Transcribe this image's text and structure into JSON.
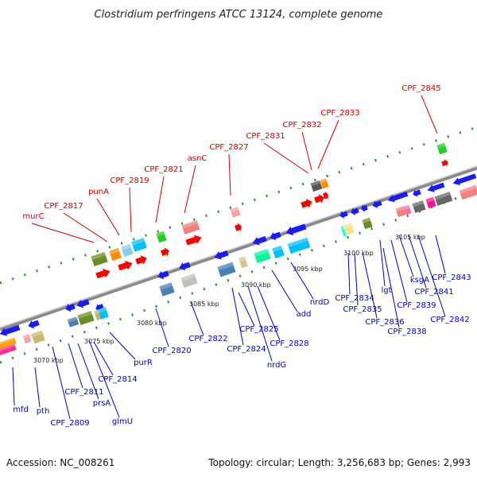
{
  "title": "Clostridium perfringens ATCC 13124, complete genome",
  "footer": {
    "accession": "Accession: NC_008261",
    "topology": "Topology: circular; Length: 3,256,683 bp; Genes: 2,993"
  },
  "scale_labels": [
    "3070 kbp",
    "3075 kbp",
    "3080 kbp",
    "3085 kbp",
    "3090 kbp",
    "3095 kbp",
    "3100 kbp",
    "3105 kbp"
  ],
  "upper_labels": [
    "murC",
    "CPF_2817",
    "punA",
    "CPF_2819",
    "CPF_2821",
    "asnC",
    "CPF_2827",
    "CPF_2831",
    "CPF_2832",
    "CPF_2833",
    "CPF_2845"
  ],
  "lower_labels": [
    "mfd",
    "pth",
    "CPF_2809",
    "CPF_2811",
    "prsA",
    "glmU",
    "CPF_2814",
    "purR",
    "CPF_2820",
    "CPF_2822",
    "CPF_2824",
    "CPF_2825",
    "nrdG",
    "CPF_2828",
    "add",
    "nrdD",
    "CPF_2834",
    "CPF_2835",
    "CPF_2836",
    "lgt",
    "CPF_2838",
    "CPF_2839",
    "ksgA",
    "CPF_2841",
    "CPF_2842",
    "CPF_2843"
  ],
  "colors": {
    "upper_label": "#d40000",
    "lower_label": "#0000cc",
    "backbone": "#8a8a8a",
    "tick": "#2e8b2e",
    "forward_gene": "#ff0000",
    "reverse_gene": "#1a1aff"
  }
}
